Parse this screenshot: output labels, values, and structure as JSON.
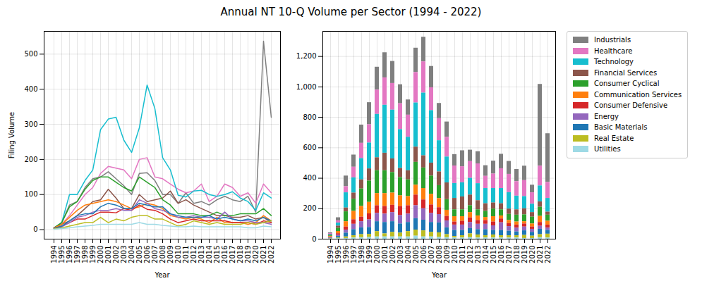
{
  "title": "Annual NT 10-Q Volume per Sector (1994 - 2022)",
  "chart_data": [
    {
      "type": "line",
      "x_label": "Year",
      "y_label": "Filing Volume",
      "grid": true,
      "categories": [
        "1994",
        "1995",
        "1996",
        "1997",
        "1998",
        "1999",
        "2000",
        "2001",
        "2002",
        "2003",
        "2004",
        "2005",
        "2006",
        "2007",
        "2008",
        "2009",
        "2010",
        "2011",
        "2012",
        "2013",
        "2014",
        "2015",
        "2016",
        "2017",
        "2018",
        "2019",
        "2020",
        "2021",
        "2022"
      ],
      "ylim": [
        -27,
        565
      ],
      "yticks": [
        0,
        100,
        200,
        300,
        400,
        500
      ],
      "series": [
        {
          "name": "Industrials",
          "color": "#7f7f7f",
          "values": [
            5,
            20,
            70,
            80,
            120,
            145,
            150,
            165,
            145,
            125,
            100,
            160,
            162,
            140,
            100,
            100,
            75,
            105,
            75,
            80,
            70,
            85,
            95,
            85,
            80,
            95,
            50,
            537,
            320
          ]
        },
        {
          "name": "Healthcare",
          "color": "#e377c2",
          "values": [
            5,
            15,
            40,
            70,
            100,
            120,
            160,
            180,
            175,
            170,
            145,
            200,
            205,
            150,
            145,
            130,
            115,
            105,
            110,
            130,
            80,
            95,
            130,
            120,
            95,
            105,
            75,
            130,
            105
          ]
        },
        {
          "name": "Technology",
          "color": "#17becf",
          "values": [
            5,
            20,
            100,
            100,
            140,
            170,
            285,
            315,
            320,
            255,
            220,
            290,
            412,
            345,
            205,
            170,
            98,
            93,
            110,
            112,
            100,
            95,
            100,
            108,
            90,
            80,
            55,
            105,
            90
          ]
        },
        {
          "name": "Financial Services",
          "color": "#8c564b",
          "values": [
            5,
            15,
            25,
            40,
            60,
            80,
            85,
            115,
            90,
            60,
            60,
            100,
            80,
            85,
            90,
            110,
            75,
            85,
            70,
            60,
            50,
            40,
            40,
            35,
            35,
            40,
            30,
            35,
            20
          ]
        },
        {
          "name": "Consumer Cyclical",
          "color": "#2ca02c",
          "values": [
            5,
            20,
            65,
            80,
            115,
            140,
            150,
            150,
            135,
            120,
            110,
            150,
            135,
            120,
            85,
            70,
            45,
            45,
            45,
            40,
            40,
            50,
            40,
            40,
            45,
            45,
            45,
            60,
            40
          ]
        },
        {
          "name": "Communication Services",
          "color": "#ff7f0e",
          "values": [
            5,
            15,
            35,
            55,
            70,
            75,
            80,
            85,
            80,
            70,
            60,
            65,
            75,
            70,
            60,
            40,
            35,
            30,
            35,
            30,
            20,
            35,
            20,
            20,
            20,
            15,
            20,
            40,
            25
          ]
        },
        {
          "name": "Consumer Defensive",
          "color": "#d62728",
          "values": [
            3,
            10,
            20,
            30,
            30,
            40,
            50,
            50,
            48,
            60,
            55,
            70,
            58,
            55,
            45,
            30,
            20,
            25,
            30,
            25,
            25,
            25,
            25,
            20,
            20,
            20,
            15,
            25,
            20
          ]
        },
        {
          "name": "Energy",
          "color": "#9467bd",
          "values": [
            3,
            8,
            20,
            35,
            40,
            50,
            55,
            55,
            60,
            55,
            55,
            85,
            75,
            60,
            55,
            45,
            35,
            35,
            40,
            35,
            35,
            30,
            50,
            30,
            25,
            25,
            20,
            20,
            15
          ]
        },
        {
          "name": "Basic Materials",
          "color": "#1f77b4",
          "values": [
            3,
            10,
            25,
            40,
            45,
            45,
            65,
            75,
            70,
            60,
            60,
            75,
            70,
            65,
            65,
            45,
            40,
            35,
            35,
            35,
            40,
            30,
            35,
            30,
            25,
            30,
            25,
            35,
            25
          ]
        },
        {
          "name": "Real Estate",
          "color": "#bcbd22",
          "values": [
            2,
            5,
            10,
            15,
            20,
            20,
            35,
            20,
            30,
            25,
            35,
            40,
            40,
            30,
            30,
            20,
            10,
            15,
            25,
            20,
            15,
            20,
            15,
            15,
            15,
            20,
            15,
            20,
            25
          ]
        },
        {
          "name": "Utilities",
          "color": "#9edae5",
          "values": [
            1,
            3,
            5,
            8,
            10,
            12,
            15,
            15,
            15,
            15,
            15,
            20,
            15,
            15,
            12,
            10,
            8,
            8,
            10,
            8,
            8,
            8,
            8,
            8,
            8,
            5,
            5,
            10,
            8
          ]
        }
      ]
    },
    {
      "type": "bar",
      "stacked": true,
      "x_label": "Year",
      "grid": true,
      "legend": "right",
      "categories": [
        "1994",
        "1995",
        "1996",
        "1997",
        "1998",
        "1999",
        "2000",
        "2001",
        "2002",
        "2003",
        "2004",
        "2005",
        "2006",
        "2007",
        "2008",
        "2009",
        "2010",
        "2011",
        "2012",
        "2013",
        "2014",
        "2015",
        "2016",
        "2017",
        "2018",
        "2019",
        "2020",
        "2021",
        "2022"
      ],
      "ylim": [
        0,
        1365
      ],
      "yticks": [
        0,
        200,
        400,
        600,
        800,
        {
          "value": 1000,
          "label": "1,000"
        },
        {
          "value": 1200,
          "label": "1,200"
        }
      ],
      "series": [
        {
          "name": "Industrials",
          "color": "#7f7f7f",
          "values": [
            5,
            20,
            70,
            80,
            120,
            145,
            150,
            165,
            145,
            125,
            100,
            160,
            162,
            140,
            100,
            100,
            75,
            105,
            75,
            80,
            70,
            85,
            95,
            85,
            80,
            95,
            50,
            537,
            320
          ]
        },
        {
          "name": "Healthcare",
          "color": "#e377c2",
          "values": [
            5,
            15,
            40,
            70,
            100,
            120,
            160,
            180,
            175,
            170,
            145,
            200,
            205,
            150,
            145,
            130,
            115,
            105,
            110,
            130,
            80,
            95,
            130,
            120,
            95,
            105,
            75,
            130,
            105
          ]
        },
        {
          "name": "Technology",
          "color": "#17becf",
          "values": [
            5,
            20,
            100,
            100,
            140,
            170,
            285,
            315,
            320,
            255,
            220,
            290,
            412,
            345,
            205,
            170,
            98,
            93,
            110,
            112,
            100,
            95,
            100,
            108,
            90,
            80,
            55,
            105,
            90
          ]
        },
        {
          "name": "Financial Services",
          "color": "#8c564b",
          "values": [
            5,
            15,
            25,
            40,
            60,
            80,
            85,
            115,
            90,
            60,
            60,
            100,
            80,
            85,
            90,
            110,
            75,
            85,
            70,
            60,
            50,
            40,
            40,
            35,
            35,
            40,
            30,
            35,
            20
          ]
        },
        {
          "name": "Consumer Cyclical",
          "color": "#2ca02c",
          "values": [
            5,
            20,
            65,
            80,
            115,
            140,
            150,
            150,
            135,
            120,
            110,
            150,
            135,
            120,
            85,
            70,
            45,
            45,
            45,
            40,
            40,
            50,
            40,
            40,
            45,
            45,
            45,
            60,
            40
          ]
        },
        {
          "name": "Communication Services",
          "color": "#ff7f0e",
          "values": [
            5,
            15,
            35,
            55,
            70,
            75,
            80,
            85,
            80,
            70,
            60,
            65,
            75,
            70,
            60,
            40,
            35,
            30,
            35,
            30,
            20,
            35,
            20,
            20,
            20,
            15,
            20,
            40,
            25
          ]
        },
        {
          "name": "Consumer Defensive",
          "color": "#d62728",
          "values": [
            3,
            10,
            20,
            30,
            30,
            40,
            50,
            50,
            48,
            60,
            55,
            70,
            58,
            55,
            45,
            30,
            20,
            25,
            30,
            25,
            25,
            25,
            25,
            20,
            20,
            20,
            15,
            25,
            20
          ]
        },
        {
          "name": "Energy",
          "color": "#9467bd",
          "values": [
            3,
            8,
            20,
            35,
            40,
            50,
            55,
            55,
            60,
            55,
            55,
            85,
            75,
            60,
            55,
            45,
            35,
            35,
            40,
            35,
            35,
            30,
            50,
            30,
            25,
            25,
            20,
            20,
            15
          ]
        },
        {
          "name": "Basic Materials",
          "color": "#1f77b4",
          "values": [
            3,
            10,
            25,
            40,
            45,
            45,
            65,
            75,
            70,
            60,
            60,
            75,
            70,
            65,
            65,
            45,
            40,
            35,
            35,
            35,
            40,
            30,
            35,
            30,
            25,
            30,
            25,
            35,
            25
          ]
        },
        {
          "name": "Real Estate",
          "color": "#bcbd22",
          "values": [
            2,
            5,
            10,
            15,
            20,
            20,
            35,
            20,
            30,
            25,
            35,
            40,
            40,
            30,
            30,
            20,
            10,
            15,
            25,
            20,
            15,
            20,
            15,
            15,
            15,
            20,
            15,
            20,
            25
          ]
        },
        {
          "name": "Utilities",
          "color": "#9edae5",
          "values": [
            1,
            3,
            5,
            8,
            10,
            12,
            15,
            15,
            15,
            15,
            15,
            20,
            15,
            15,
            12,
            10,
            8,
            8,
            10,
            8,
            8,
            8,
            8,
            8,
            8,
            5,
            5,
            10,
            8
          ]
        }
      ]
    }
  ]
}
